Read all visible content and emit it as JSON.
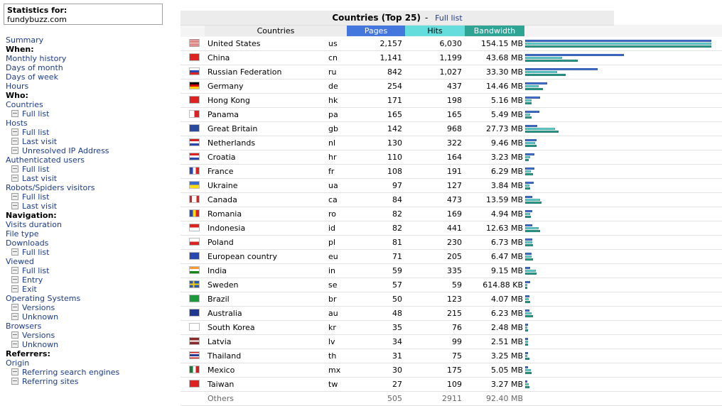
{
  "header": {
    "stats_label": "Statistics for:",
    "site": "fundybuzz.com"
  },
  "menu": [
    {
      "type": "link",
      "label": "Summary"
    },
    {
      "type": "head",
      "label": "When:"
    },
    {
      "type": "link",
      "label": "Monthly history"
    },
    {
      "type": "link",
      "label": "Days of month"
    },
    {
      "type": "link",
      "label": "Days of week"
    },
    {
      "type": "link",
      "label": "Hours"
    },
    {
      "type": "head",
      "label": "Who:"
    },
    {
      "type": "link",
      "label": "Countries"
    },
    {
      "type": "sub",
      "label": "Full list"
    },
    {
      "type": "link",
      "label": "Hosts"
    },
    {
      "type": "sub",
      "label": "Full list"
    },
    {
      "type": "sub",
      "label": "Last visit"
    },
    {
      "type": "sub",
      "label": "Unresolved IP Address"
    },
    {
      "type": "link",
      "label": "Authenticated users"
    },
    {
      "type": "sub",
      "label": "Full list"
    },
    {
      "type": "sub",
      "label": "Last visit"
    },
    {
      "type": "link",
      "label": "Robots/Spiders visitors"
    },
    {
      "type": "sub",
      "label": "Full list"
    },
    {
      "type": "sub",
      "label": "Last visit"
    },
    {
      "type": "head",
      "label": "Navigation:"
    },
    {
      "type": "link",
      "label": "Visits duration"
    },
    {
      "type": "link",
      "label": "File type"
    },
    {
      "type": "link",
      "label": "Downloads"
    },
    {
      "type": "sub",
      "label": "Full list"
    },
    {
      "type": "link",
      "label": "Viewed"
    },
    {
      "type": "sub",
      "label": "Full list"
    },
    {
      "type": "sub",
      "label": "Entry"
    },
    {
      "type": "sub",
      "label": "Exit"
    },
    {
      "type": "link",
      "label": "Operating Systems"
    },
    {
      "type": "sub",
      "label": "Versions"
    },
    {
      "type": "sub",
      "label": "Unknown"
    },
    {
      "type": "link",
      "label": "Browsers"
    },
    {
      "type": "sub",
      "label": "Versions"
    },
    {
      "type": "sub",
      "label": "Unknown"
    },
    {
      "type": "head",
      "label": "Referrers:"
    },
    {
      "type": "link",
      "label": "Origin"
    },
    {
      "type": "sub",
      "label": "Referring search engines"
    },
    {
      "type": "sub",
      "label": "Referring sites"
    }
  ],
  "section": {
    "title": "Countries (Top 25)",
    "separator": "-",
    "full_list_link": "Full list"
  },
  "columns": {
    "countries": "Countries",
    "pages": "Pages",
    "hits": "Hits",
    "bandwidth": "Bandwidth"
  },
  "colors": {
    "pages": "#4477dd",
    "hits": "#66dddd",
    "bandwidth": "#2ea495"
  },
  "rows": [
    {
      "flag": "us",
      "name": "United States",
      "code": "us",
      "pages": "2,157",
      "hits": "6,030",
      "bw": "154.15 MB",
      "pv": 2157,
      "hv": 6030,
      "bv": 154.15
    },
    {
      "flag": "cn",
      "name": "China",
      "code": "cn",
      "pages": "1,141",
      "hits": "1,199",
      "bw": "43.68 MB",
      "pv": 1141,
      "hv": 1199,
      "bv": 43.68
    },
    {
      "flag": "ru",
      "name": "Russian Federation",
      "code": "ru",
      "pages": "842",
      "hits": "1,027",
      "bw": "33.30 MB",
      "pv": 842,
      "hv": 1027,
      "bv": 33.3
    },
    {
      "flag": "de",
      "name": "Germany",
      "code": "de",
      "pages": "254",
      "hits": "437",
      "bw": "14.46 MB",
      "pv": 254,
      "hv": 437,
      "bv": 14.46
    },
    {
      "flag": "hk",
      "name": "Hong Kong",
      "code": "hk",
      "pages": "171",
      "hits": "198",
      "bw": "5.16 MB",
      "pv": 171,
      "hv": 198,
      "bv": 5.16
    },
    {
      "flag": "pa",
      "name": "Panama",
      "code": "pa",
      "pages": "165",
      "hits": "165",
      "bw": "5.49 MB",
      "pv": 165,
      "hv": 165,
      "bv": 5.49
    },
    {
      "flag": "gb",
      "name": "Great Britain",
      "code": "gb",
      "pages": "142",
      "hits": "968",
      "bw": "27.73 MB",
      "pv": 142,
      "hv": 968,
      "bv": 27.73
    },
    {
      "flag": "nl",
      "name": "Netherlands",
      "code": "nl",
      "pages": "130",
      "hits": "322",
      "bw": "9.46 MB",
      "pv": 130,
      "hv": 322,
      "bv": 9.46
    },
    {
      "flag": "hr",
      "name": "Croatia",
      "code": "hr",
      "pages": "110",
      "hits": "164",
      "bw": "3.23 MB",
      "pv": 110,
      "hv": 164,
      "bv": 3.23
    },
    {
      "flag": "fr",
      "name": "France",
      "code": "fr",
      "pages": "108",
      "hits": "191",
      "bw": "6.29 MB",
      "pv": 108,
      "hv": 191,
      "bv": 6.29
    },
    {
      "flag": "ua",
      "name": "Ukraine",
      "code": "ua",
      "pages": "97",
      "hits": "127",
      "bw": "3.84 MB",
      "pv": 97,
      "hv": 127,
      "bv": 3.84
    },
    {
      "flag": "ca",
      "name": "Canada",
      "code": "ca",
      "pages": "84",
      "hits": "473",
      "bw": "13.59 MB",
      "pv": 84,
      "hv": 473,
      "bv": 13.59
    },
    {
      "flag": "ro",
      "name": "Romania",
      "code": "ro",
      "pages": "82",
      "hits": "169",
      "bw": "4.94 MB",
      "pv": 82,
      "hv": 169,
      "bv": 4.94
    },
    {
      "flag": "id",
      "name": "Indonesia",
      "code": "id",
      "pages": "82",
      "hits": "441",
      "bw": "12.63 MB",
      "pv": 82,
      "hv": 441,
      "bv": 12.63
    },
    {
      "flag": "pl",
      "name": "Poland",
      "code": "pl",
      "pages": "81",
      "hits": "230",
      "bw": "6.73 MB",
      "pv": 81,
      "hv": 230,
      "bv": 6.73
    },
    {
      "flag": "eu",
      "name": "European country",
      "code": "eu",
      "pages": "71",
      "hits": "205",
      "bw": "6.47 MB",
      "pv": 71,
      "hv": 205,
      "bv": 6.47
    },
    {
      "flag": "in",
      "name": "India",
      "code": "in",
      "pages": "59",
      "hits": "335",
      "bw": "9.15 MB",
      "pv": 59,
      "hv": 335,
      "bv": 9.15
    },
    {
      "flag": "se",
      "name": "Sweden",
      "code": "se",
      "pages": "57",
      "hits": "59",
      "bw": "614.88 KB",
      "pv": 57,
      "hv": 59,
      "bv": 0.6
    },
    {
      "flag": "br",
      "name": "Brazil",
      "code": "br",
      "pages": "50",
      "hits": "123",
      "bw": "4.07 MB",
      "pv": 50,
      "hv": 123,
      "bv": 4.07
    },
    {
      "flag": "au",
      "name": "Australia",
      "code": "au",
      "pages": "48",
      "hits": "215",
      "bw": "6.23 MB",
      "pv": 48,
      "hv": 215,
      "bv": 6.23
    },
    {
      "flag": "kr",
      "name": "South Korea",
      "code": "kr",
      "pages": "35",
      "hits": "76",
      "bw": "2.48 MB",
      "pv": 35,
      "hv": 76,
      "bv": 2.48
    },
    {
      "flag": "lv",
      "name": "Latvia",
      "code": "lv",
      "pages": "34",
      "hits": "99",
      "bw": "2.51 MB",
      "pv": 34,
      "hv": 99,
      "bv": 2.51
    },
    {
      "flag": "th",
      "name": "Thailand",
      "code": "th",
      "pages": "31",
      "hits": "75",
      "bw": "3.25 MB",
      "pv": 31,
      "hv": 75,
      "bv": 3.25
    },
    {
      "flag": "mx",
      "name": "Mexico",
      "code": "mx",
      "pages": "30",
      "hits": "175",
      "bw": "5.05 MB",
      "pv": 30,
      "hv": 175,
      "bv": 5.05
    },
    {
      "flag": "tw",
      "name": "Taiwan",
      "code": "tw",
      "pages": "27",
      "hits": "109",
      "bw": "3.27 MB",
      "pv": 27,
      "hv": 109,
      "bv": 3.27
    }
  ],
  "others": {
    "name": "Others",
    "pages": "505",
    "hits": "2911",
    "bw": "92.40 MB"
  }
}
